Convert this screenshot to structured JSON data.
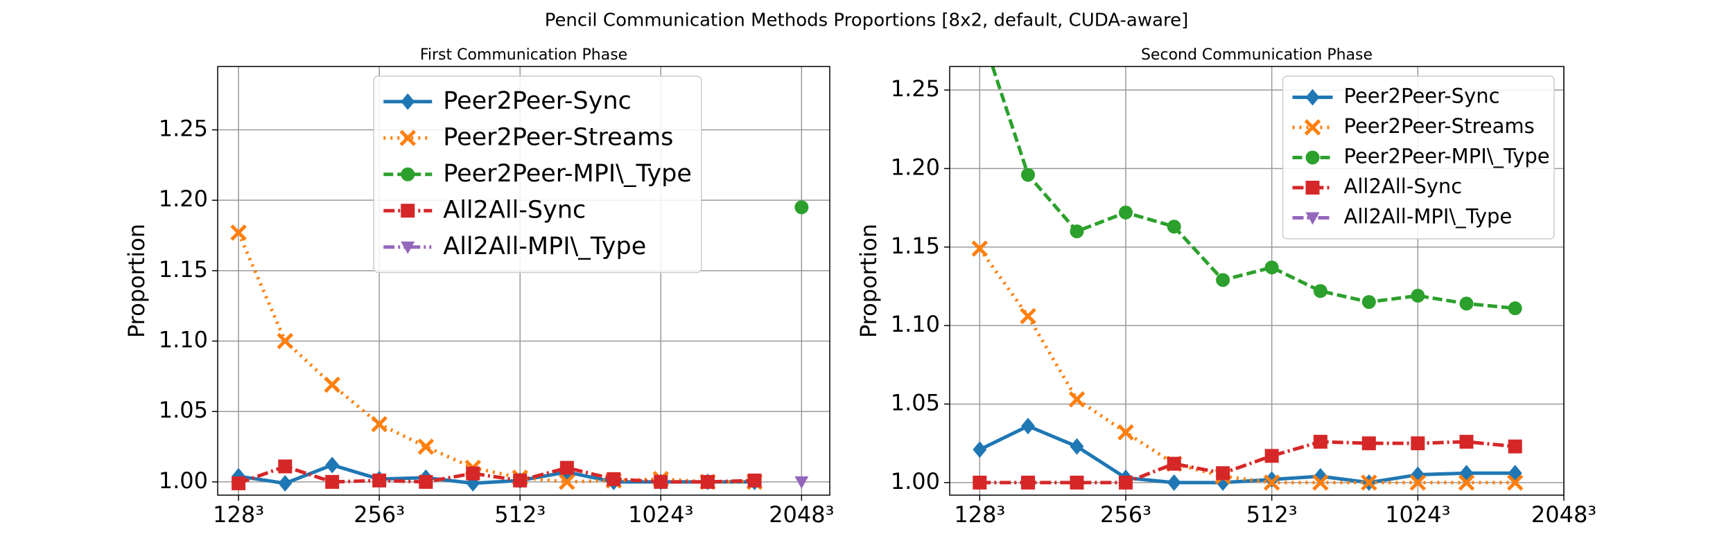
{
  "suptitle": "Pencil Communication Methods Proportions [8x2, default, CUDA-aware]",
  "chart_data": [
    {
      "type": "line",
      "title": "First Communication Phase",
      "ylabel": "Proportion",
      "xscale": "log",
      "grid": true,
      "legend": "upper center",
      "xlim": [
        115.5,
        2353
      ],
      "ylim": [
        0.9906,
        1.295
      ],
      "xticks": [
        {
          "value": 128,
          "label": "128³"
        },
        {
          "value": 256,
          "label": "256³"
        },
        {
          "value": 512,
          "label": "512³"
        },
        {
          "value": 1024,
          "label": "1024³"
        },
        {
          "value": 2048,
          "label": "2048³"
        }
      ],
      "yticks": [
        {
          "value": 1,
          "label": "1.00"
        },
        1.05,
        {
          "value": 1.1,
          "label": "1.10"
        },
        1.15,
        {
          "value": 1.2,
          "label": "1.20"
        },
        1.25
      ],
      "x": [
        128,
        161,
        203,
        256,
        322,
        406,
        512,
        645,
        812,
        1024,
        1290,
        1625,
        2048
      ],
      "series": [
        {
          "name": "Peer2Peer-Sync",
          "color": "#1f77b4",
          "values": [
            1.004,
            0.999,
            1.012,
            1.002,
            1.003,
            0.999,
            1.001,
            1.007,
            1.0,
            1.0,
            1.0,
            1.0,
            null
          ]
        },
        {
          "name": "Peer2Peer-Streams",
          "color": "#ff7f0e",
          "values": [
            1.177,
            1.1,
            1.069,
            1.041,
            1.025,
            1.01,
            1.003,
            1.0,
            1.001,
            1.002,
            1.0,
            1.0,
            null
          ]
        },
        {
          "name": "Peer2Peer-MPI\\_Type",
          "color": "#2ca02c",
          "values": [
            null,
            null,
            null,
            null,
            null,
            null,
            null,
            null,
            null,
            null,
            null,
            null,
            1.195
          ]
        },
        {
          "name": "All2All-Sync",
          "color": "#d62728",
          "values": [
            0.999,
            1.011,
            1.0,
            1.001,
            1.0,
            1.006,
            1.001,
            1.01,
            1.002,
            1.0,
            1.0,
            1.001,
            null
          ]
        },
        {
          "name": "All2All-MPI\\_Type",
          "color": "#9467bd",
          "values": [
            null,
            null,
            null,
            null,
            null,
            null,
            null,
            null,
            null,
            null,
            null,
            null,
            1.0
          ]
        }
      ]
    },
    {
      "type": "line",
      "title": "Second Communication Phase",
      "ylabel": "Proportion",
      "xscale": "log",
      "grid": true,
      "legend": "upper right",
      "xlim": [
        111,
        2048
      ],
      "ylim": [
        0.992,
        1.265
      ],
      "xticks": [
        {
          "value": 128,
          "label": "128³"
        },
        {
          "value": 256,
          "label": "256³"
        },
        {
          "value": 512,
          "label": "512³"
        },
        {
          "value": 1024,
          "label": "1024³"
        },
        {
          "value": 2048,
          "label": "2048³"
        }
      ],
      "yticks": [
        {
          "value": 1,
          "label": "1.00"
        },
        1.05,
        {
          "value": 1.1,
          "label": "1.10"
        },
        1.15,
        {
          "value": 1.2,
          "label": "1.20"
        },
        1.25
      ],
      "x": [
        128,
        161,
        203,
        256,
        322,
        406,
        512,
        645,
        812,
        1024,
        1290,
        1625
      ],
      "series": [
        {
          "name": "Peer2Peer-Sync",
          "color": "#1f77b4",
          "values": [
            1.021,
            1.036,
            1.023,
            1.003,
            1.0,
            1.0,
            1.002,
            1.004,
            1.0,
            1.005,
            1.006,
            1.006
          ]
        },
        {
          "name": "Peer2Peer-Streams",
          "color": "#ff7f0e",
          "values": [
            1.149,
            1.106,
            1.053,
            1.032,
            1.012,
            1.004,
            1.0,
            1.0,
            1.0,
            1.0,
            1.0,
            1.0
          ]
        },
        {
          "name": "Peer2Peer-MPI\\_Type",
          "color": "#2ca02c",
          "values": [
            1.29,
            1.196,
            1.16,
            1.172,
            1.163,
            1.129,
            1.137,
            1.122,
            1.115,
            1.119,
            1.114,
            1.111
          ]
        },
        {
          "name": "All2All-Sync",
          "color": "#d62728",
          "values": [
            1.0,
            1.0,
            1.0,
            1.0,
            1.012,
            1.006,
            1.017,
            1.026,
            1.025,
            1.025,
            1.026,
            1.023
          ]
        },
        {
          "name": "All2All-MPI\\_Type",
          "color": "#9467bd",
          "values": [
            null,
            null,
            null,
            null,
            null,
            null,
            null,
            null,
            null,
            null,
            null,
            null
          ]
        }
      ]
    }
  ]
}
